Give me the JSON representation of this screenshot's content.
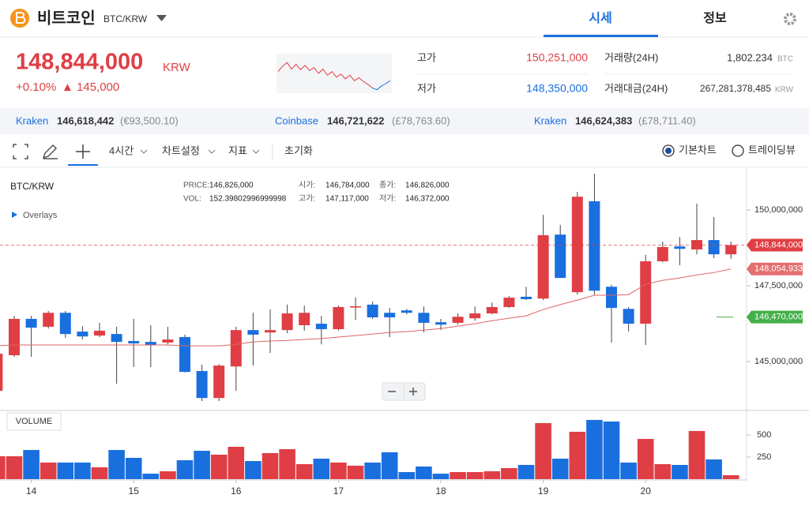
{
  "header": {
    "name": "비트코인",
    "symbol": "BTC/KRW",
    "tabs": [
      "시세",
      "정보"
    ]
  },
  "price": {
    "current": "148,844,000",
    "currency": "KRW",
    "change_pct": "+0.10%",
    "change": "▲ 145,000"
  },
  "sparkline": {
    "values": [
      55,
      70,
      80,
      62,
      75,
      60,
      72,
      58,
      66,
      50,
      62,
      45,
      55,
      40,
      48,
      35,
      45,
      30,
      38,
      28,
      20,
      10,
      5,
      15,
      22,
      30
    ],
    "ylim": [
      0,
      100
    ],
    "color": "#e03e45",
    "end_color": "#1a6fdf"
  },
  "stats": [
    {
      "label": "고가",
      "value": "150,251,000",
      "color": "#e03e45"
    },
    {
      "label": "저가",
      "value": "148,350,000",
      "color": "#1a6fdf"
    },
    {
      "label": "거래량(24H)",
      "value": "1,802.234",
      "unit": "BTC"
    },
    {
      "label": "거래대금(24H)",
      "value": "267,281,378,485",
      "unit": "KRW"
    }
  ],
  "exchanges": [
    {
      "name": "Kraken",
      "price": "146,618,442",
      "alt": "(€93,500.10)"
    },
    {
      "name": "Coinbase",
      "price": "146,721,622",
      "alt": "(£78,763.60)"
    },
    {
      "name": "Kraken",
      "price": "146,624,383",
      "alt": "(£78,711.40)"
    }
  ],
  "toolbar": {
    "interval": "4시간",
    "settings": "차트설정",
    "indicator": "지표",
    "reset": "초기화",
    "modes": [
      "기본차트",
      "트레이딩뷰"
    ]
  },
  "chart_data": {
    "type": "candlestick",
    "title": "BTC/KRW",
    "overlays": "Overlays",
    "hover_info": [
      {
        "label": "PRICE:",
        "value": "146,826,000"
      },
      {
        "label": "VOL:",
        "value": "152.39802996999998"
      },
      {
        "label": "시가:",
        "value": "146,784,000"
      },
      {
        "label": "고가:",
        "value": "147,117,000"
      },
      {
        "label": "종가:",
        "value": "146,826,000"
      },
      {
        "label": "저가:",
        "value": "146,372,000"
      }
    ],
    "categories": [
      null,
      null,
      "14",
      null,
      null,
      null,
      null,
      null,
      "15",
      null,
      null,
      null,
      null,
      null,
      "16",
      null,
      null,
      null,
      null,
      null,
      "17",
      null,
      null,
      null,
      null,
      null,
      "18",
      null,
      null,
      null,
      null,
      null,
      "19",
      null,
      null,
      null,
      null,
      null,
      "20",
      null,
      null,
      null,
      null,
      null
    ],
    "open": [
      144040000,
      145210000,
      146410000,
      146150000,
      146610000,
      145990000,
      145860000,
      145910000,
      145680000,
      145650000,
      145630000,
      145810000,
      144690000,
      143800000,
      144840000,
      146040000,
      145960000,
      146040000,
      146200000,
      146250000,
      146070000,
      146784000,
      146880000,
      146610000,
      146690000,
      146610000,
      146300000,
      146280000,
      146430000,
      146590000,
      146800000,
      147140000,
      147080000,
      149190000,
      147290000,
      150290000,
      147470000,
      146740000,
      146250000,
      148310000,
      148800000,
      148700000,
      149010000,
      148540000
    ],
    "high": [
      145470000,
      146510000,
      146510000,
      146670000,
      146670000,
      146170000,
      146280000,
      146150000,
      146410000,
      146200000,
      146150000,
      145890000,
      144900000,
      144920000,
      146150000,
      146610000,
      146720000,
      146880000,
      146850000,
      146510000,
      146850000,
      147117000,
      146980000,
      146770000,
      146740000,
      146820000,
      146410000,
      146590000,
      146820000,
      146950000,
      147160000,
      147470000,
      149840000,
      149510000,
      150600000,
      151200000,
      147530000,
      146800000,
      148520000,
      148960000,
      149110000,
      150210000,
      149770000,
      148960000
    ],
    "low": [
      144040000,
      145160000,
      145160000,
      146090000,
      145780000,
      145730000,
      145810000,
      144270000,
      144820000,
      144820000,
      145570000,
      144640000,
      143700000,
      143700000,
      144040000,
      144870000,
      145290000,
      145940000,
      146020000,
      145570000,
      146020000,
      146372000,
      146410000,
      145810000,
      146560000,
      145960000,
      146040000,
      146220000,
      146350000,
      146560000,
      146770000,
      147030000,
      147030000,
      147760000,
      147210000,
      147210000,
      145630000,
      145990000,
      145550000,
      148280000,
      148180000,
      148540000,
      148410000,
      148390000
    ],
    "close": [
      145260000,
      146410000,
      146120000,
      146610000,
      145910000,
      145830000,
      146020000,
      145650000,
      145600000,
      145550000,
      145730000,
      144660000,
      143800000,
      144870000,
      146040000,
      145890000,
      146040000,
      146590000,
      146610000,
      146070000,
      146800000,
      146826000,
      146460000,
      146460000,
      146610000,
      146280000,
      146220000,
      146480000,
      146590000,
      146800000,
      147110000,
      147060000,
      149170000,
      147760000,
      150440000,
      147340000,
      146770000,
      146250000,
      148310000,
      148780000,
      148720000,
      149010000,
      148540000,
      148844000
    ],
    "up_color": "#e03e45",
    "down_color": "#1a6fdf",
    "ma": {
      "color": "#e06363",
      "values": [
        145520000,
        145550000,
        145550000,
        145550000,
        145550000,
        145550000,
        145550000,
        145550000,
        145550000,
        145550000,
        145550000,
        145520000,
        145520000,
        145520000,
        145570000,
        145650000,
        145680000,
        145700000,
        145730000,
        145760000,
        145810000,
        145860000,
        145910000,
        145960000,
        145990000,
        146040000,
        146090000,
        146170000,
        146250000,
        146350000,
        146430000,
        146510000,
        146720000,
        146880000,
        147030000,
        147190000,
        147190000,
        147210000,
        147550000,
        147680000,
        147760000,
        147860000,
        147940000,
        148054933
      ]
    },
    "ylim": [
      143440000,
      151330000
    ],
    "yticks": [
      {
        "value": 145000000,
        "label": "145,000,000"
      },
      {
        "value": 147500000,
        "label": "147,500,000"
      },
      {
        "value": 150000000,
        "label": "150,000,000"
      }
    ],
    "price_tags": [
      {
        "value": 148844000,
        "label": "148,844,000",
        "color": "#e03e45",
        "line": "dashed"
      },
      {
        "value": 148054933,
        "label": "148,054,933",
        "color": "#e46f6f"
      },
      {
        "value": 146470000,
        "label": "146,470,000",
        "color": "#43b049",
        "line": "short"
      }
    ],
    "volume": {
      "label": "VOLUME",
      "values": [
        259,
        259,
        330,
        188,
        188,
        188,
        134,
        330,
        241,
        62,
        89,
        214,
        321,
        277,
        366,
        205,
        295,
        339,
        170,
        232,
        188,
        152.39802996999998,
        188,
        304,
        80,
        143,
        62,
        80,
        80,
        89,
        125,
        161,
        634,
        232,
        536,
        670,
        652,
        188,
        455,
        170,
        161,
        545,
        223,
        45
      ],
      "ylim": [
        0,
        759
      ],
      "yticks": [
        250,
        500
      ]
    }
  }
}
